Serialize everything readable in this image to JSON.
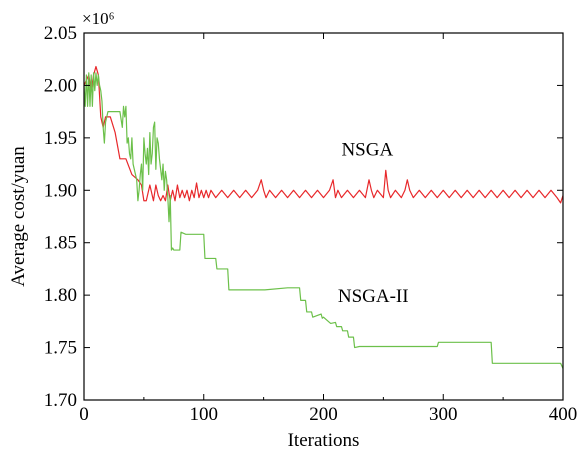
{
  "chart_data": {
    "type": "line",
    "xlabel": "Iterations",
    "ylabel": "Average cost/yuan",
    "y_multiplier": "×10⁶",
    "xlim": [
      0,
      400
    ],
    "ylim": [
      1.7,
      2.05
    ],
    "x_ticks": [
      0,
      100,
      200,
      300,
      400
    ],
    "y_ticks": [
      1.7,
      1.75,
      1.8,
      1.85,
      1.9,
      1.95,
      2.0,
      2.05
    ],
    "x_tick_labels": [
      "0",
      "100",
      "200",
      "300",
      "400"
    ],
    "y_tick_labels": [
      "1.70",
      "1.75",
      "1.80",
      "1.85",
      "1.90",
      "1.95",
      "2.00",
      "2.05"
    ],
    "grid": false,
    "series": [
      {
        "name": "NSGA",
        "color": "#e8282b",
        "x": [
          0,
          2,
          4,
          6,
          8,
          10,
          12,
          14,
          16,
          18,
          22,
          26,
          30,
          35,
          40,
          45,
          48,
          50,
          52,
          55,
          58,
          60,
          62,
          64,
          66,
          68,
          70,
          72,
          74,
          76,
          78,
          80,
          82,
          84,
          86,
          88,
          90,
          92,
          94,
          96,
          98,
          100,
          102,
          104,
          106,
          110,
          115,
          120,
          125,
          130,
          135,
          140,
          145,
          148,
          150,
          152,
          155,
          160,
          165,
          170,
          175,
          180,
          185,
          190,
          195,
          200,
          205,
          208,
          210,
          212,
          215,
          220,
          225,
          230,
          235,
          238,
          240,
          242,
          245,
          250,
          252,
          254,
          256,
          260,
          265,
          268,
          270,
          272,
          275,
          280,
          285,
          290,
          295,
          300,
          305,
          310,
          315,
          320,
          325,
          330,
          335,
          340,
          345,
          350,
          355,
          360,
          365,
          370,
          375,
          380,
          385,
          390,
          395,
          398,
          400
        ],
        "y": [
          2.0,
          2.005,
          2.01,
          1.995,
          2.01,
          2.018,
          2.01,
          1.97,
          1.96,
          1.97,
          1.97,
          1.955,
          1.93,
          1.93,
          1.915,
          1.91,
          1.905,
          1.89,
          1.89,
          1.905,
          1.89,
          1.905,
          1.895,
          1.89,
          1.895,
          1.89,
          1.905,
          1.89,
          1.9,
          1.89,
          1.905,
          1.893,
          1.9,
          1.893,
          1.9,
          1.89,
          1.9,
          1.893,
          1.907,
          1.893,
          1.9,
          1.893,
          1.9,
          1.893,
          1.9,
          1.893,
          1.9,
          1.893,
          1.9,
          1.893,
          1.9,
          1.893,
          1.9,
          1.91,
          1.9,
          1.893,
          1.9,
          1.893,
          1.9,
          1.893,
          1.9,
          1.893,
          1.9,
          1.893,
          1.9,
          1.893,
          1.9,
          1.91,
          1.893,
          1.9,
          1.893,
          1.9,
          1.893,
          1.9,
          1.893,
          1.91,
          1.9,
          1.893,
          1.9,
          1.893,
          1.919,
          1.9,
          1.893,
          1.9,
          1.893,
          1.9,
          1.91,
          1.9,
          1.893,
          1.9,
          1.893,
          1.9,
          1.893,
          1.9,
          1.893,
          1.9,
          1.893,
          1.9,
          1.893,
          1.9,
          1.893,
          1.9,
          1.893,
          1.9,
          1.893,
          1.9,
          1.893,
          1.9,
          1.893,
          1.9,
          1.893,
          1.9,
          1.893,
          1.888,
          1.895
        ]
      },
      {
        "name": "NSGA-II",
        "color": "#6cc04a",
        "x": [
          0,
          1,
          2,
          3,
          4,
          5,
          6,
          7,
          8,
          9,
          10,
          11,
          12,
          13,
          14,
          15,
          16,
          17,
          18,
          20,
          25,
          30,
          32,
          33,
          34,
          35,
          36,
          37,
          38,
          39,
          40,
          41,
          42,
          43,
          44,
          45,
          46,
          47,
          48,
          49,
          50,
          51,
          52,
          53,
          54,
          55,
          56,
          57,
          58,
          59,
          60,
          61,
          62,
          63,
          64,
          65,
          66,
          67,
          68,
          69,
          70,
          71,
          72,
          73,
          74,
          75,
          76,
          80,
          81,
          85,
          100,
          101,
          110,
          111,
          120,
          121,
          150,
          151,
          170,
          180,
          181,
          185,
          186,
          190,
          191,
          198,
          199,
          200,
          205,
          206,
          210,
          211,
          215,
          216,
          220,
          221,
          225,
          226,
          230,
          295,
          296,
          340,
          341,
          398,
          400
        ],
        "y": [
          2.0,
          1.98,
          2.01,
          1.98,
          2.012,
          1.98,
          2.01,
          1.98,
          2.012,
          1.995,
          2.012,
          2.0,
          2.01,
          2.0,
          1.995,
          1.985,
          1.96,
          1.945,
          1.965,
          1.975,
          1.975,
          1.975,
          1.96,
          1.98,
          1.97,
          1.98,
          1.945,
          1.95,
          1.935,
          1.93,
          1.95,
          1.925,
          1.92,
          1.915,
          1.91,
          1.89,
          1.9,
          1.915,
          1.925,
          1.9,
          1.95,
          1.935,
          1.925,
          1.94,
          1.915,
          1.955,
          1.925,
          1.935,
          1.96,
          1.965,
          1.92,
          1.95,
          1.945,
          1.93,
          1.92,
          1.91,
          1.925,
          1.9,
          1.918,
          1.91,
          1.893,
          1.87,
          1.895,
          1.843,
          1.845,
          1.843,
          1.843,
          1.843,
          1.86,
          1.858,
          1.858,
          1.835,
          1.835,
          1.825,
          1.825,
          1.805,
          1.805,
          1.805,
          1.807,
          1.807,
          1.795,
          1.795,
          1.784,
          1.784,
          1.779,
          1.782,
          1.778,
          1.779,
          1.774,
          1.773,
          1.774,
          1.77,
          1.77,
          1.766,
          1.766,
          1.76,
          1.76,
          1.75,
          1.751,
          1.751,
          1.755,
          1.755,
          1.735,
          1.735,
          1.73
        ]
      }
    ],
    "annotations": [
      {
        "text": "NSGA",
        "x": 215,
        "y": 1.94
      },
      {
        "text": "NSGA-II",
        "x": 212,
        "y": 1.8
      }
    ]
  }
}
